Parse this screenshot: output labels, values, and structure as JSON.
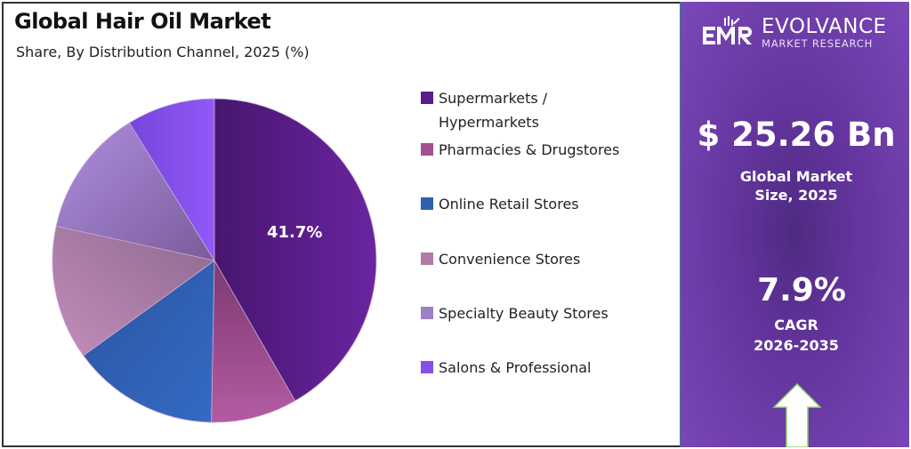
{
  "header": {
    "title": "Global Hair Oil Market",
    "subtitle": "Share, By Distribution Channel, 2025 (%)"
  },
  "brand": {
    "logo_mark": "EMR",
    "name": "EVOLVANCE",
    "tagline": "MARKET RESEARCH"
  },
  "stats": {
    "market_size_value": "$ 25.26 Bn",
    "market_size_label_line1": "Global Market",
    "market_size_label_line2": "Size, 2025",
    "cagr_value": "7.9%",
    "cagr_label_line1": "CAGR",
    "cagr_label_line2": "2026-2035",
    "arrow_icon": "up-arrow"
  },
  "colors": {
    "panel_bg": "#6a3aa8",
    "supermarkets": "#5a1d8c",
    "pharmacies": "#a2508f",
    "online": "#2f5fae",
    "convenience": "#b07ba6",
    "specialty": "#9e80c8",
    "salons": "#8450ea"
  },
  "pie_label": "41.7%",
  "legend": [
    {
      "line1": "Supermarkets /",
      "line2": "Hypermarkets",
      "color": "#5a1d8c"
    },
    {
      "line1": "Pharmacies & Drugstores",
      "color": "#a2508f"
    },
    {
      "line1": "Online Retail Stores",
      "color": "#2f5fae"
    },
    {
      "line1": "Convenience Stores",
      "color": "#b07ba6"
    },
    {
      "line1": "Specialty Beauty Stores",
      "color": "#9e80c8"
    },
    {
      "line1": "Salons & Professional",
      "color": "#8450ea"
    }
  ],
  "chart_data": {
    "type": "pie",
    "title": "Global Hair Oil Market",
    "subtitle": "Share, By Distribution Channel, 2025 (%)",
    "categories": [
      "Supermarkets / Hypermarkets",
      "Pharmacies & Drugstores",
      "Online Retail Stores",
      "Convenience Stores",
      "Specialty Beauty Stores",
      "Salons & Professional"
    ],
    "values": [
      41.7,
      8.6,
      14.7,
      13.4,
      12.8,
      8.8
    ],
    "labeled_values": {
      "Supermarkets / Hypermarkets": 41.7
    },
    "start_angle": "12 o'clock, clockwise",
    "legend_position": "right",
    "colors": [
      "#5a1d8c",
      "#a2508f",
      "#2f5fae",
      "#b07ba6",
      "#9e80c8",
      "#8450ea"
    ]
  }
}
